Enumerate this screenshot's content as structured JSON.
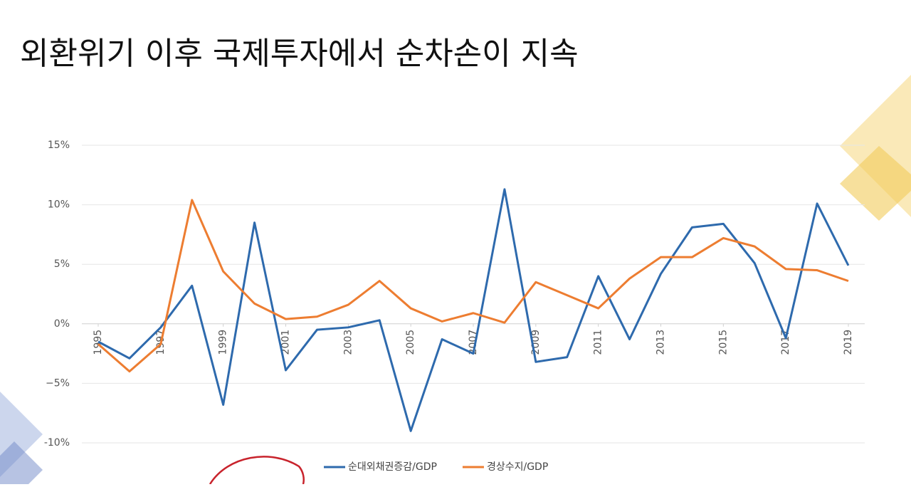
{
  "chart_data": {
    "type": "line",
    "title": "외환위기 이후 국제투자에서 순차손이 지속",
    "x": [
      1995,
      1996,
      1997,
      1998,
      1999,
      2000,
      2001,
      2002,
      2003,
      2004,
      2005,
      2006,
      2007,
      2008,
      2009,
      2010,
      2011,
      2012,
      2013,
      2014,
      2015,
      2016,
      2017,
      2018,
      2019
    ],
    "xlim": [
      1995,
      2019
    ],
    "xticks": [
      1995,
      1997,
      1999,
      2001,
      2003,
      2005,
      2007,
      2009,
      2011,
      2013,
      2015,
      2017,
      2019
    ],
    "ylim": [
      -10,
      15
    ],
    "yticks": [
      {
        "value": -10,
        "label": "-10%"
      },
      {
        "value": -5,
        "label": "−5%"
      },
      {
        "value": 0,
        "label": "0%"
      },
      {
        "value": 5,
        "label": "5%"
      },
      {
        "value": 10,
        "label": "10%"
      },
      {
        "value": 15,
        "label": "15%"
      }
    ],
    "grid": true,
    "legend": "bottom",
    "series": [
      {
        "name": "순대외채권증감/GDP",
        "color": "#2e6aad",
        "values": [
          -1.5,
          -2.9,
          -0.3,
          3.2,
          -6.8,
          8.5,
          -3.9,
          -0.5,
          -0.3,
          0.3,
          -9.0,
          -1.3,
          -2.5,
          11.3,
          -3.2,
          -2.8,
          4.0,
          -1.3,
          4.2,
          8.1,
          8.4,
          5.1,
          -1.2,
          10.1,
          4.9
        ]
      },
      {
        "name": "경상수지/GDP",
        "color": "#ed7d31",
        "values": [
          -1.7,
          -4.0,
          -1.7,
          10.4,
          4.4,
          1.7,
          0.4,
          0.6,
          1.6,
          3.6,
          1.3,
          0.2,
          0.9,
          0.1,
          3.5,
          2.4,
          1.3,
          3.8,
          5.6,
          5.6,
          7.2,
          6.5,
          4.6,
          4.5,
          3.6
        ]
      }
    ]
  }
}
